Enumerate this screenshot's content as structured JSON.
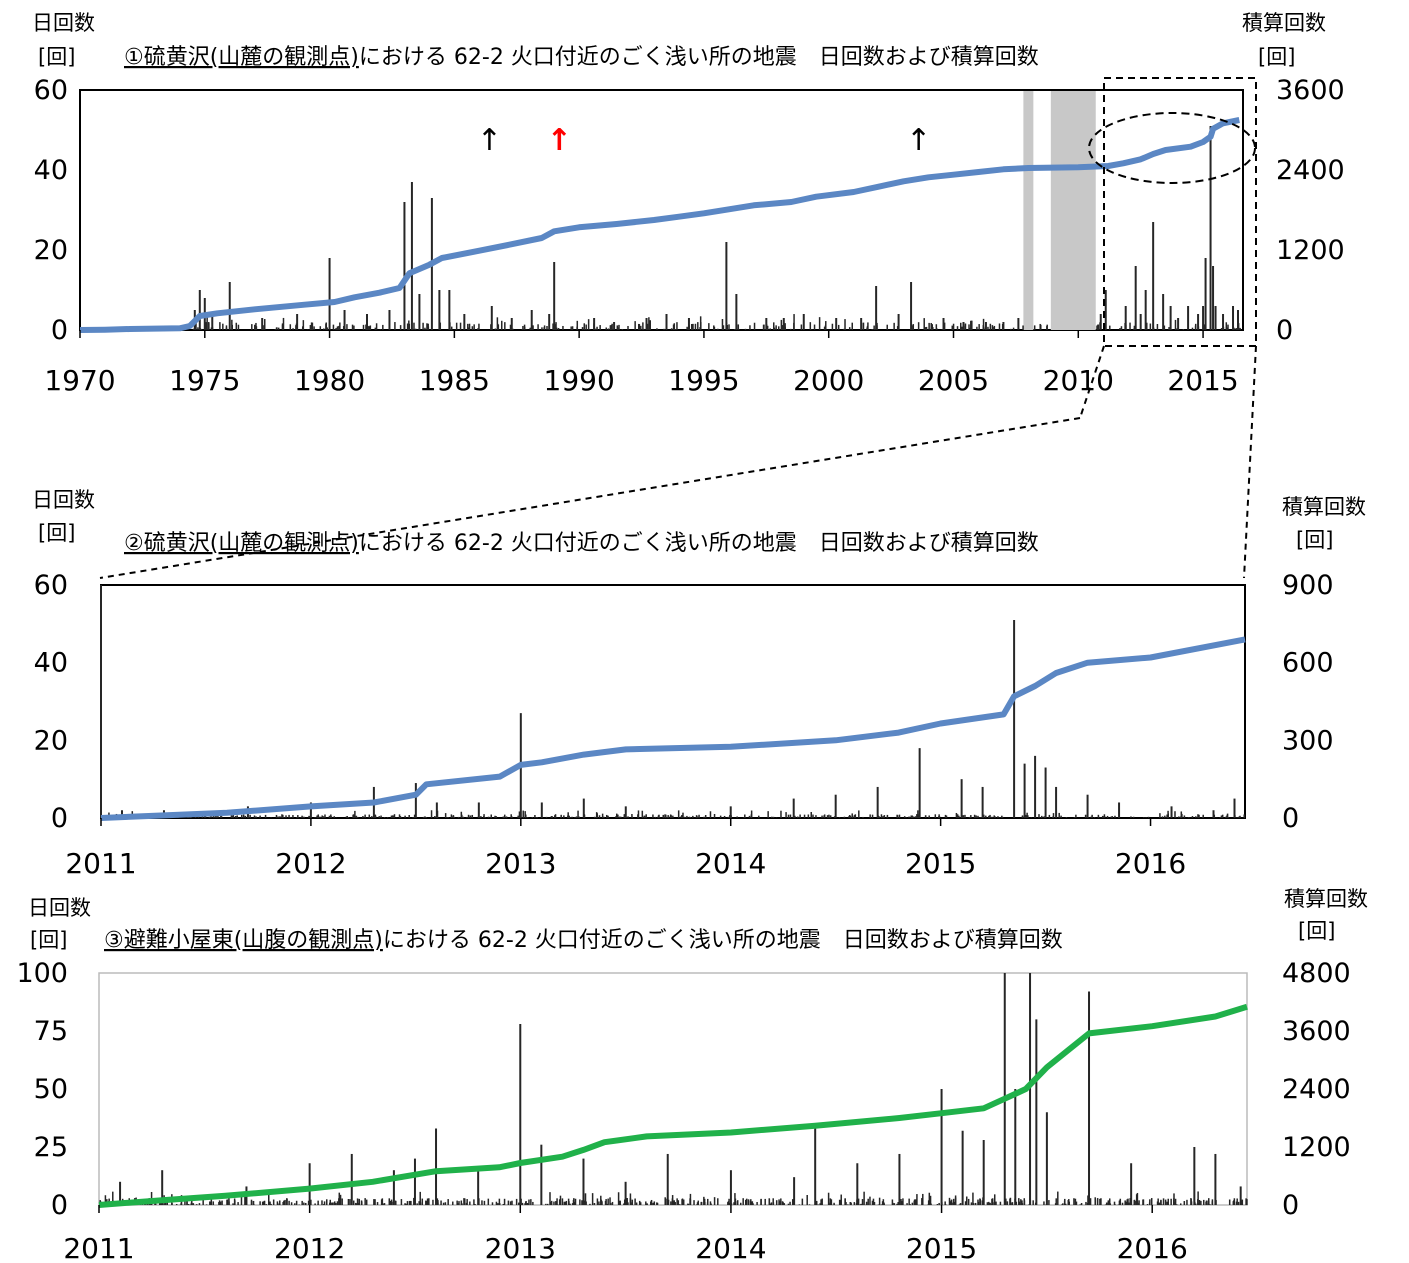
{
  "chart_data": [
    {
      "type": "bar+line",
      "title": "①硫黄沢(山麓の観測点)における 62-2 火口付近のごく浅い所の地震　日回数および積算回数",
      "title_underlined": "①硫黄沢(山麓の観測点)",
      "title_rest": "における 62-2 火口付近のごく浅い所の地震　日回数および積算回数",
      "left_axis_label": "日回数",
      "left_axis_unit": "[回]",
      "right_axis_label": "積算回数",
      "right_axis_unit": "[回]",
      "xlim": [
        1970,
        2016.6
      ],
      "ylim": [
        0,
        60
      ],
      "y2lim": [
        0,
        3600
      ],
      "x_ticks": [
        "1970",
        "1975",
        "1980",
        "1985",
        "1990",
        "1995",
        "2000",
        "2005",
        "2010",
        "2015"
      ],
      "y_ticks": [
        "0",
        "20",
        "40",
        "60"
      ],
      "y2_ticks": [
        "0",
        "1200",
        "2400",
        "3600"
      ],
      "series": [
        {
          "kind": "daily-bars",
          "color": "#262626",
          "spikes": [
            [
              1974.8,
              10
            ],
            [
              1974.6,
              5
            ],
            [
              1975.0,
              8
            ],
            [
              1975.3,
              4
            ],
            [
              1976.0,
              12
            ],
            [
              1977.3,
              3
            ],
            [
              1978.7,
              4
            ],
            [
              1980.0,
              18
            ],
            [
              1980.6,
              5
            ],
            [
              1981.5,
              4
            ],
            [
              1982.4,
              5
            ],
            [
              1983.0,
              32
            ],
            [
              1983.3,
              37
            ],
            [
              1983.6,
              9
            ],
            [
              1984.1,
              33
            ],
            [
              1984.4,
              10
            ],
            [
              1984.8,
              10
            ],
            [
              1985.4,
              4
            ],
            [
              1986.5,
              6
            ],
            [
              1987.3,
              3
            ],
            [
              1988.1,
              5
            ],
            [
              1988.8,
              4
            ],
            [
              1989.0,
              17
            ],
            [
              1990.6,
              3
            ],
            [
              1991.4,
              2
            ],
            [
              1992.7,
              3
            ],
            [
              1993.5,
              4
            ],
            [
              1994.4,
              3
            ],
            [
              1995.9,
              22
            ],
            [
              1996.3,
              9
            ],
            [
              1997.5,
              3
            ],
            [
              1998.2,
              3
            ],
            [
              1999.0,
              4
            ],
            [
              2000.3,
              3
            ],
            [
              2001.3,
              3
            ],
            [
              2001.9,
              11
            ],
            [
              2002.8,
              4
            ],
            [
              2003.3,
              12
            ],
            [
              2004.6,
              3
            ],
            [
              2005.4,
              2
            ],
            [
              2006.3,
              2
            ],
            [
              2007.0,
              2
            ],
            [
              2007.6,
              3
            ],
            [
              2010.9,
              4
            ],
            [
              2011.1,
              10
            ],
            [
              2011.9,
              6
            ],
            [
              2012.3,
              16
            ],
            [
              2012.5,
              4
            ],
            [
              2012.7,
              10
            ],
            [
              2013.0,
              27
            ],
            [
              2013.4,
              9
            ],
            [
              2013.7,
              6
            ],
            [
              2014.0,
              3
            ],
            [
              2014.4,
              6
            ],
            [
              2014.8,
              4
            ],
            [
              2015.0,
              6
            ],
            [
              2015.3,
              51
            ],
            [
              2015.1,
              18
            ],
            [
              2015.4,
              16
            ],
            [
              2015.5,
              6
            ],
            [
              2015.8,
              4
            ],
            [
              2016.2,
              6
            ],
            [
              2016.4,
              5
            ]
          ],
          "background_level": 2
        },
        {
          "kind": "cumulative-line",
          "axis": "right",
          "color": "#5b87c4",
          "points": [
            [
              1970,
              0
            ],
            [
              1971,
              5
            ],
            [
              1972,
              15
            ],
            [
              1974,
              25
            ],
            [
              1974.4,
              60
            ],
            [
              1974.8,
              210
            ],
            [
              1975.5,
              250
            ],
            [
              1977,
              310
            ],
            [
              1979,
              380
            ],
            [
              1980.2,
              420
            ],
            [
              1981,
              490
            ],
            [
              1982,
              560
            ],
            [
              1982.8,
              630
            ],
            [
              1983.2,
              850
            ],
            [
              1984,
              980
            ],
            [
              1984.5,
              1080
            ],
            [
              1986,
              1190
            ],
            [
              1987.2,
              1280
            ],
            [
              1988.5,
              1380
            ],
            [
              1989,
              1480
            ],
            [
              1990,
              1540
            ],
            [
              1991.5,
              1590
            ],
            [
              1993,
              1650
            ],
            [
              1994,
              1700
            ],
            [
              1995,
              1750
            ],
            [
              1996,
              1810
            ],
            [
              1997,
              1870
            ],
            [
              1998.5,
              1920
            ],
            [
              1999.5,
              2000
            ],
            [
              2001,
              2070
            ],
            [
              2002,
              2150
            ],
            [
              2003,
              2230
            ],
            [
              2004,
              2290
            ],
            [
              2005,
              2330
            ],
            [
              2006,
              2370
            ],
            [
              2007,
              2410
            ],
            [
              2008,
              2430
            ],
            [
              2010,
              2440
            ],
            [
              2011.2,
              2460
            ],
            [
              2011.8,
              2500
            ],
            [
              2012.5,
              2560
            ],
            [
              2013,
              2640
            ],
            [
              2013.5,
              2700
            ],
            [
              2014.5,
              2750
            ],
            [
              2015.0,
              2820
            ],
            [
              2015.3,
              2900
            ],
            [
              2015.4,
              3020
            ],
            [
              2015.8,
              3100
            ],
            [
              2016.45,
              3150
            ]
          ]
        }
      ],
      "shaded_periods": [
        [
          2007.8,
          2008.2
        ],
        [
          2008.9,
          2010.7
        ]
      ],
      "arrows": [
        {
          "x": 1986.4,
          "color": "#000000",
          "glyph": "↑"
        },
        {
          "x": 1989.2,
          "color": "#ff0000",
          "glyph": "↑"
        },
        {
          "x": 2003.6,
          "color": "#000000",
          "glyph": "↑"
        }
      ],
      "highlight": "dashed ellipse and dashed rectangle around 2011–2016 cumulative curve, zoomed in chart ②"
    },
    {
      "type": "bar+line",
      "title": "②硫黄沢(山麓の観測点)における 62-2 火口付近のごく浅い所の地震　日回数および積算回数",
      "title_underlined": "②硫黄沢(山麓の観測点)",
      "title_rest": "における 62-2 火口付近のごく浅い所の地震　日回数および積算回数",
      "left_axis_label": "日回数",
      "left_axis_unit": "[回]",
      "right_axis_label": "積算回数",
      "right_axis_unit": "[回]",
      "xlim": [
        2011,
        2016.45
      ],
      "ylim": [
        0,
        60
      ],
      "y2lim": [
        0,
        900
      ],
      "x_ticks": [
        "2011",
        "2012",
        "2013",
        "2014",
        "2015",
        "2016"
      ],
      "y_ticks": [
        "0",
        "20",
        "40",
        "60"
      ],
      "y2_ticks": [
        "0",
        "300",
        "600",
        "900"
      ],
      "series": [
        {
          "kind": "daily-bars",
          "color": "#262626",
          "spikes": [
            [
              2011.0,
              60
            ],
            [
              2011.1,
              2
            ],
            [
              2011.3,
              2
            ],
            [
              2011.7,
              3
            ],
            [
              2012.0,
              4
            ],
            [
              2012.3,
              8
            ],
            [
              2012.5,
              9
            ],
            [
              2012.6,
              4
            ],
            [
              2012.8,
              4
            ],
            [
              2013.0,
              27
            ],
            [
              2013.1,
              4
            ],
            [
              2013.3,
              5
            ],
            [
              2013.5,
              3
            ],
            [
              2014.0,
              3
            ],
            [
              2014.3,
              5
            ],
            [
              2014.5,
              6
            ],
            [
              2014.7,
              8
            ],
            [
              2014.9,
              18
            ],
            [
              2015.1,
              10
            ],
            [
              2015.2,
              8
            ],
            [
              2015.35,
              51
            ],
            [
              2015.4,
              14
            ],
            [
              2015.45,
              16
            ],
            [
              2015.5,
              13
            ],
            [
              2015.55,
              8
            ],
            [
              2015.7,
              6
            ],
            [
              2015.85,
              4
            ],
            [
              2016.1,
              3
            ],
            [
              2016.3,
              2
            ],
            [
              2016.4,
              5
            ]
          ],
          "background_level": 1
        },
        {
          "kind": "cumulative-line",
          "axis": "right",
          "color": "#5b87c4",
          "points": [
            [
              2011,
              0
            ],
            [
              2011.3,
              10
            ],
            [
              2011.6,
              20
            ],
            [
              2012,
              45
            ],
            [
              2012.3,
              60
            ],
            [
              2012.5,
              90
            ],
            [
              2012.55,
              130
            ],
            [
              2012.9,
              160
            ],
            [
              2013.0,
              205
            ],
            [
              2013.1,
              215
            ],
            [
              2013.3,
              245
            ],
            [
              2013.5,
              265
            ],
            [
              2014,
              275
            ],
            [
              2014.5,
              300
            ],
            [
              2014.8,
              330
            ],
            [
              2015.0,
              365
            ],
            [
              2015.3,
              400
            ],
            [
              2015.35,
              470
            ],
            [
              2015.45,
              510
            ],
            [
              2015.55,
              560
            ],
            [
              2015.7,
              600
            ],
            [
              2016,
              620
            ],
            [
              2016.45,
              690
            ]
          ]
        }
      ]
    },
    {
      "type": "bar+line",
      "title": "③避難小屋東(山腹の観測点)における 62-2 火口付近のごく浅い所の地震　日回数および積算回数",
      "title_underlined": "③避難小屋東(山腹の観測点)",
      "title_rest": "における 62-2 火口付近のごく浅い所の地震　日回数および積算回数",
      "left_axis_label": "日回数",
      "left_axis_unit": "[回]",
      "right_axis_label": "積算回数",
      "right_axis_unit": "[回]",
      "xlim": [
        2011,
        2016.45
      ],
      "ylim": [
        0,
        100
      ],
      "y2lim": [
        0,
        4800
      ],
      "x_ticks": [
        "2011",
        "2012",
        "2013",
        "2014",
        "2015",
        "2016"
      ],
      "y_ticks": [
        "0",
        "25",
        "50",
        "75",
        "100"
      ],
      "y2_ticks": [
        "0",
        "1200",
        "2400",
        "3600",
        "4800"
      ],
      "series": [
        {
          "kind": "daily-bars",
          "color": "#262626",
          "spikes": [
            [
              2011.1,
              10
            ],
            [
              2011.3,
              15
            ],
            [
              2011.7,
              8
            ],
            [
              2012.0,
              18
            ],
            [
              2012.2,
              22
            ],
            [
              2012.4,
              15
            ],
            [
              2012.5,
              20
            ],
            [
              2012.6,
              33
            ],
            [
              2012.8,
              15
            ],
            [
              2013.0,
              78
            ],
            [
              2013.1,
              26
            ],
            [
              2013.3,
              20
            ],
            [
              2013.5,
              10
            ],
            [
              2013.7,
              22
            ],
            [
              2014.0,
              15
            ],
            [
              2014.3,
              12
            ],
            [
              2014.4,
              35
            ],
            [
              2014.6,
              18
            ],
            [
              2014.8,
              22
            ],
            [
              2015.0,
              50
            ],
            [
              2015.1,
              32
            ],
            [
              2015.2,
              28
            ],
            [
              2015.3,
              100
            ],
            [
              2015.35,
              50
            ],
            [
              2015.42,
              100
            ],
            [
              2015.45,
              80
            ],
            [
              2015.5,
              40
            ],
            [
              2015.7,
              92
            ],
            [
              2015.9,
              18
            ],
            [
              2016.2,
              25
            ],
            [
              2016.3,
              22
            ],
            [
              2016.42,
              8
            ]
          ],
          "background_level": 3
        },
        {
          "kind": "cumulative-line",
          "axis": "right",
          "color": "#20b14a",
          "points": [
            [
              2011,
              0
            ],
            [
              2011.3,
              100
            ],
            [
              2011.6,
              190
            ],
            [
              2012,
              340
            ],
            [
              2012.3,
              480
            ],
            [
              2012.6,
              700
            ],
            [
              2012.9,
              780
            ],
            [
              2013.0,
              870
            ],
            [
              2013.2,
              1000
            ],
            [
              2013.3,
              1140
            ],
            [
              2013.4,
              1300
            ],
            [
              2013.6,
              1420
            ],
            [
              2014,
              1500
            ],
            [
              2014.4,
              1640
            ],
            [
              2014.8,
              1800
            ],
            [
              2015.0,
              1900
            ],
            [
              2015.2,
              2000
            ],
            [
              2015.3,
              2200
            ],
            [
              2015.4,
              2400
            ],
            [
              2015.5,
              2850
            ],
            [
              2015.6,
              3200
            ],
            [
              2015.7,
              3550
            ],
            [
              2016,
              3700
            ],
            [
              2016.3,
              3900
            ],
            [
              2016.45,
              4100
            ]
          ]
        }
      ]
    }
  ]
}
